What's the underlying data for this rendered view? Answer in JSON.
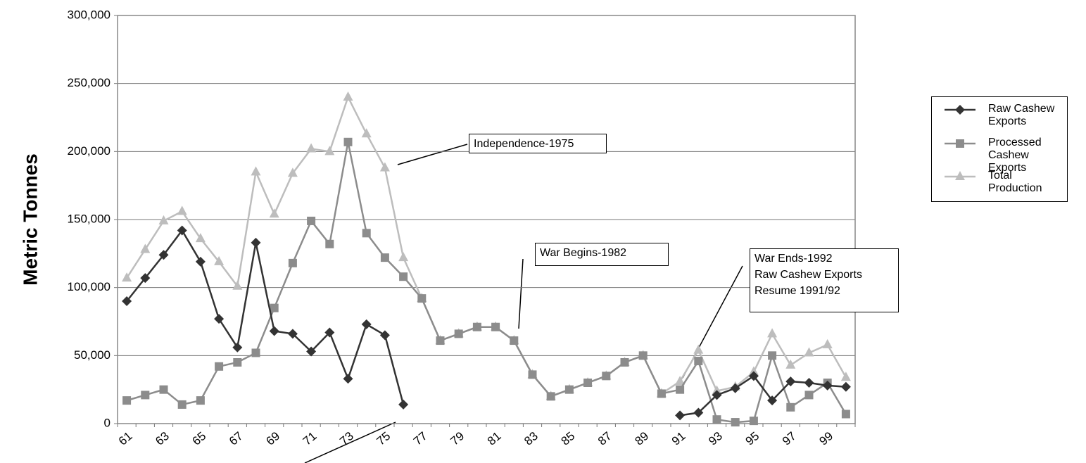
{
  "chart_data": {
    "type": "line",
    "y_label": "Metric Tonnes",
    "categories": [
      "61",
      null,
      "63",
      null,
      "65",
      null,
      "67",
      null,
      "69",
      null,
      "71",
      null,
      "73",
      null,
      "75",
      null,
      "77",
      null,
      "79",
      null,
      "81",
      null,
      "83",
      null,
      "85",
      null,
      "87",
      null,
      "89",
      null,
      "91",
      null,
      "93",
      null,
      "95",
      null,
      "97",
      null,
      "99",
      null
    ],
    "series": [
      {
        "name": "Total Production",
        "color": "#bdbdbd",
        "marker": "triangle",
        "values": [
          107000,
          128000,
          149000,
          156000,
          136000,
          119000,
          101000,
          185000,
          154000,
          184000,
          202000,
          200000,
          240000,
          213000,
          188000,
          122000,
          92000,
          61000,
          66000,
          71000,
          71000,
          61000,
          36000,
          20000,
          25000,
          30000,
          35000,
          45000,
          50000,
          22000,
          31000,
          54000,
          24000,
          27000,
          38000,
          66000,
          43000,
          52000,
          58000,
          34000
        ]
      },
      {
        "name": "Processed Cashew Exports",
        "color": "#8c8c8c",
        "marker": "square",
        "values": [
          17000,
          21000,
          25000,
          14000,
          17000,
          42000,
          45000,
          52000,
          85000,
          118000,
          149000,
          132000,
          207000,
          140000,
          122000,
          108000,
          92000,
          61000,
          66000,
          71000,
          71000,
          61000,
          36000,
          20000,
          25000,
          30000,
          35000,
          45000,
          50000,
          22000,
          25000,
          46000,
          3000,
          1000,
          2000,
          50000,
          12000,
          21000,
          30000,
          7000
        ]
      },
      {
        "name": "Raw Cashew Exports",
        "color": "#333333",
        "marker": "diamond",
        "values": [
          90000,
          107000,
          124000,
          142000,
          119000,
          77000,
          56000,
          133000,
          68000,
          66000,
          53000,
          67000,
          33000,
          73000,
          65000,
          14000,
          null,
          null,
          null,
          null,
          null,
          null,
          null,
          null,
          null,
          null,
          null,
          null,
          null,
          null,
          6000,
          8000,
          21000,
          26000,
          35000,
          17000,
          31000,
          30000,
          28000,
          27000
        ]
      }
    ],
    "legend_order": [
      2,
      1,
      0
    ],
    "ylim": [
      0,
      300000
    ],
    "yticks": [
      0,
      {
        "value": 50000,
        "label": "50,000"
      },
      {
        "value": 100000,
        "label": "100,000"
      },
      {
        "value": 150000,
        "label": "150,000"
      },
      {
        "value": 200000,
        "label": "200,000"
      },
      {
        "value": 250000,
        "label": "250,000"
      },
      {
        "value": 300000,
        "label": "300,000"
      }
    ],
    "grid": true,
    "legend": "right",
    "annotations": [
      {
        "lines": [
          "Independence-1975"
        ]
      },
      {
        "lines": [
          "War Begins-1982"
        ]
      },
      {
        "lines": [
          "War Ends-1992",
          "Raw Cashew Exports",
          "Resume 1991/92"
        ]
      }
    ]
  }
}
